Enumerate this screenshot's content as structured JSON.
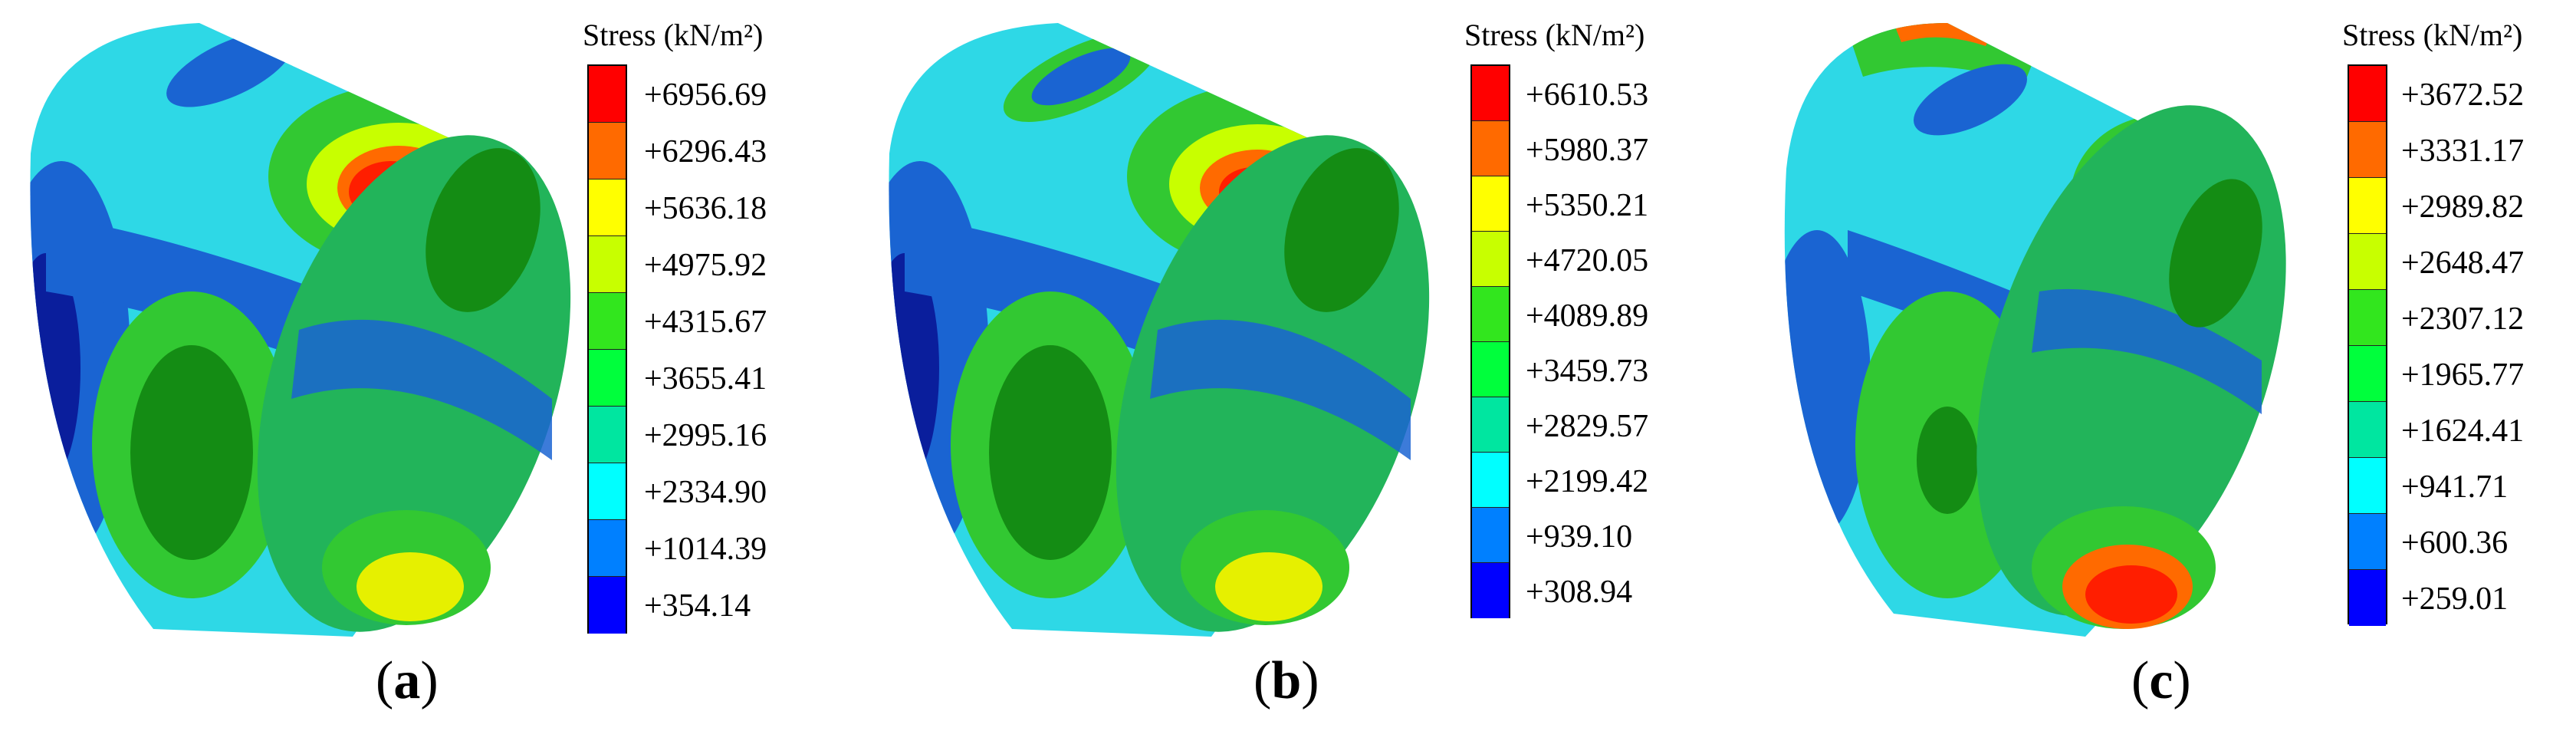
{
  "legend_title": "Stress (kN/m²)",
  "panels": [
    {
      "caption_open": "(",
      "caption_letter": "a",
      "caption_close": ")",
      "legend_values": [
        "+6956.69",
        "+6296.43",
        "+5636.18",
        "+4975.92",
        "+4315.67",
        "+3655.41",
        "+2995.16",
        "+2334.90",
        "+1014.39",
        "+354.14"
      ]
    },
    {
      "caption_open": "(",
      "caption_letter": "b",
      "caption_close": ")",
      "legend_values": [
        "+6610.53",
        "+5980.37",
        "+5350.21",
        "+4720.05",
        "+4089.89",
        "+3459.73",
        "+2829.57",
        "+2199.42",
        "+939.10",
        "+308.94"
      ]
    },
    {
      "caption_open": "(",
      "caption_letter": "c",
      "caption_close": ")",
      "legend_values": [
        "+3672.52",
        "+3331.17",
        "+2989.82",
        "+2648.47",
        "+2307.12",
        "+1965.77",
        "+1624.41",
        "+941.71",
        "+600.36",
        "+259.01"
      ]
    }
  ],
  "colors": {
    "legend_scale": [
      "#ff0000",
      "#ff6a00",
      "#ffff00",
      "#c8ff00",
      "#32e61e",
      "#00ff3c",
      "#00e6a0",
      "#00ffff",
      "#0080ff",
      "#0000ff"
    ],
    "shell_cyan": "#2ed8e6",
    "shell_blue": "#1a64d2",
    "shell_navy": "#0a1e9c",
    "shell_green": "#32c832",
    "shell_yellow": "#e6f000",
    "shell_red": "#ff1e00",
    "interior_green": "#148c14"
  }
}
